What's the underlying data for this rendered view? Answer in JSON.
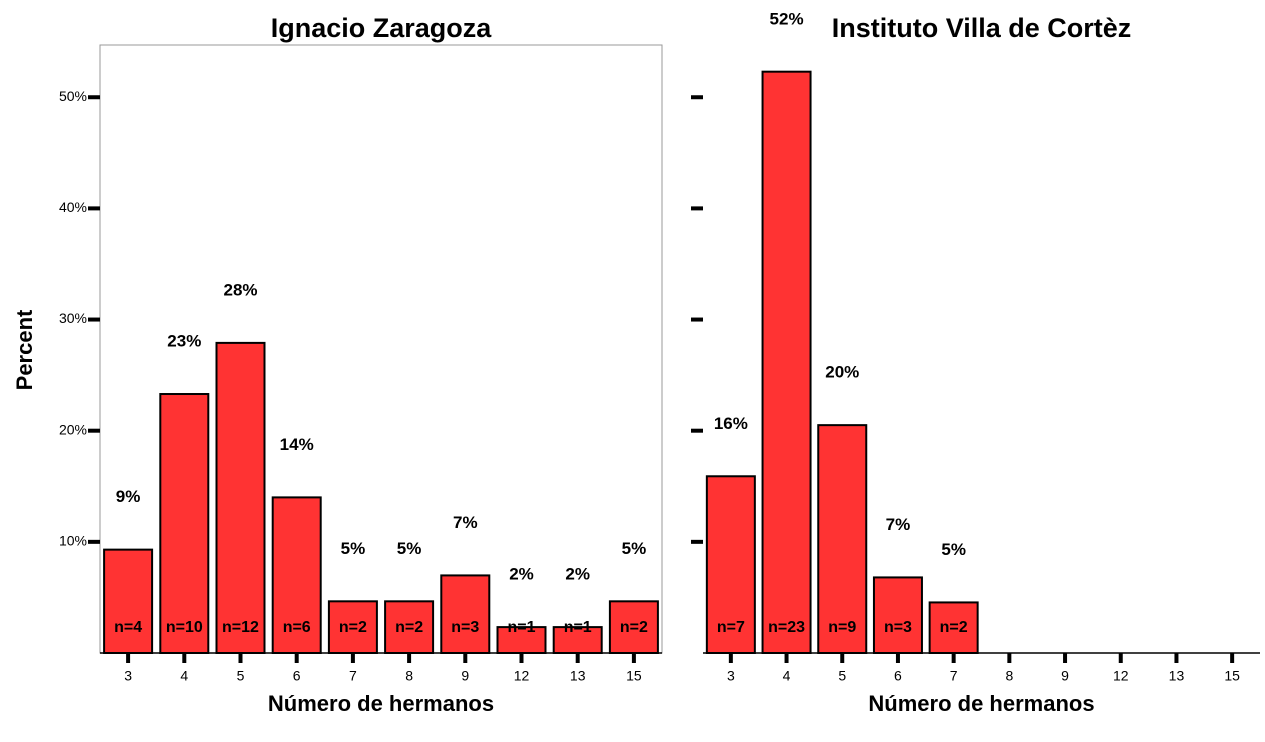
{
  "chart_data": [
    {
      "type": "bar",
      "title": "Ignacio Zaragoza",
      "xlabel": "Número de hermanos",
      "ylabel": "Percent",
      "categories": [
        "3",
        "4",
        "5",
        "6",
        "7",
        "8",
        "9",
        "12",
        "13",
        "15"
      ],
      "values": [
        9.3,
        23.3,
        27.9,
        14.0,
        4.65,
        4.65,
        6.98,
        2.33,
        2.33,
        4.65
      ],
      "value_labels": [
        "9%",
        "23%",
        "28%",
        "14%",
        "5%",
        "5%",
        "7%",
        "2%",
        "2%",
        "5%"
      ],
      "count_labels": [
        "n=4",
        "n=10",
        "n=12",
        "n=6",
        "n=2",
        "n=2",
        "n=3",
        "n=1",
        "n=1",
        "n=2"
      ],
      "color": "#ff3333",
      "ylim": [
        0,
        54.7
      ],
      "yticks": [
        {
          "value": 10,
          "label": "10%"
        },
        {
          "value": 20,
          "label": "20%"
        },
        {
          "value": 30,
          "label": "30%"
        },
        {
          "value": 40,
          "label": "40%"
        },
        {
          "value": 50,
          "label": "50%"
        }
      ],
      "ytick_labels": true,
      "frame": true
    },
    {
      "type": "bar",
      "title": "Instituto Villa de Cortèz",
      "xlabel": "Número de hermanos",
      "categories": [
        "3",
        "4",
        "5",
        "6",
        "7",
        "8",
        "9",
        "12",
        "13",
        "15"
      ],
      "values": [
        15.9,
        52.3,
        20.5,
        6.8,
        4.55,
        null,
        null,
        null,
        null,
        null
      ],
      "value_labels": [
        "16%",
        "52%",
        "20%",
        "7%",
        "5%",
        null,
        null,
        null,
        null,
        null
      ],
      "count_labels": [
        "n=7",
        "n=23",
        "n=9",
        "n=3",
        "n=2",
        null,
        null,
        null,
        null,
        null
      ],
      "color": "#ff3333",
      "ylim": [
        0,
        54.7
      ],
      "yticks": [
        10,
        20,
        30,
        40,
        50
      ],
      "ytick_labels": false,
      "frame": false
    }
  ]
}
